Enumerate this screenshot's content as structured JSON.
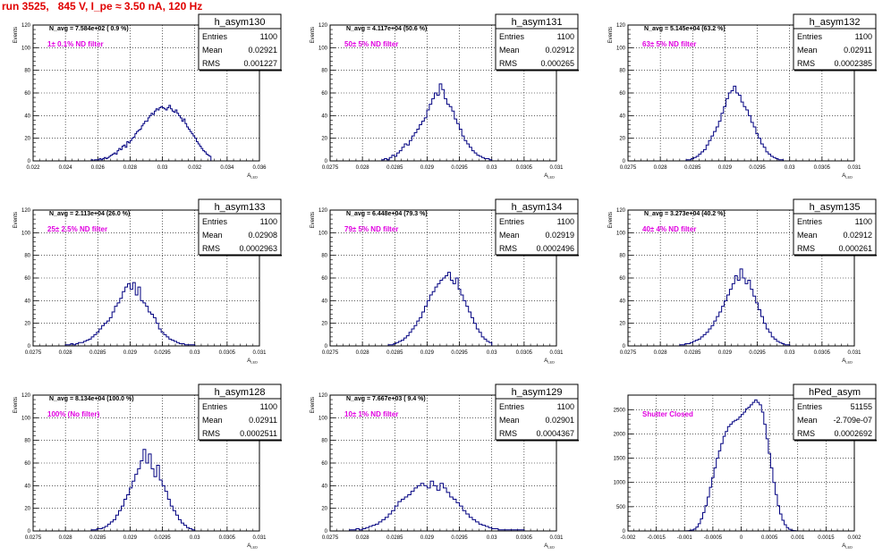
{
  "page_title": "run 3525,   845 V, I_pe ≈ 3.50 nA, 120 Hz",
  "colors": {
    "histogram_line": "#000080",
    "title_red": "#e00000",
    "annotation_magenta": "#e000e0",
    "grid": "#000000",
    "background": "#ffffff"
  },
  "stat_labels": {
    "entries": "Entries",
    "mean": "Mean",
    "rms": "RMS"
  },
  "chart_data": [
    {
      "type": "histogram",
      "name": "h_asym130",
      "stats": {
        "entries": "1100",
        "mean": "0.02921",
        "rms": "0.001227"
      },
      "navg": "N_avg = 7.584e+02 ( 0.9 %)",
      "note": "1± 0.1% ND filter",
      "ylabel": "Events",
      "xlabel": "A_LED",
      "xlim": [
        0.022,
        0.036
      ],
      "ylim": [
        0,
        120
      ],
      "xticks": [
        0.022,
        0.024,
        0.026,
        0.028,
        0.03,
        0.032,
        0.034,
        0.036
      ],
      "xtick_labels": [
        "0.022",
        "0.024",
        "0.026",
        "0.028",
        "0.03",
        "0.032",
        "0.034",
        "0.036"
      ],
      "yticks": [
        0,
        20,
        40,
        60,
        80,
        100,
        120
      ],
      "ytick_labels": [
        "0",
        "20",
        "40",
        "60",
        "80",
        "100",
        "120"
      ],
      "bins": {
        "lo": 0.0255,
        "hi": 0.033,
        "counts": [
          0,
          1,
          0,
          1,
          1,
          1,
          2,
          1,
          2,
          3,
          2,
          3,
          4,
          5,
          6,
          7,
          6,
          9,
          11,
          10,
          13,
          14,
          12,
          17,
          16,
          18,
          20,
          21,
          24,
          26,
          27,
          28,
          31,
          33,
          35,
          35,
          38,
          40,
          42,
          41,
          44,
          46,
          45,
          47,
          48,
          47,
          46,
          45,
          47,
          49,
          46,
          44,
          43,
          45,
          42,
          40,
          38,
          35,
          37,
          33,
          30,
          28,
          26,
          24,
          22,
          20,
          17,
          15,
          13,
          11,
          9,
          8,
          6,
          5,
          4
        ]
      }
    },
    {
      "type": "histogram",
      "name": "h_asym131",
      "stats": {
        "entries": "1100",
        "mean": "0.02912",
        "rms": "0.000265"
      },
      "navg": "N_avg = 4.117e+04 (50.6 %)",
      "note": "50± 5% ND filter",
      "ylabel": "Events",
      "xlabel": "A_LED",
      "xlim": [
        0.0275,
        0.031
      ],
      "ylim": [
        0,
        120
      ],
      "xticks": [
        0.0275,
        0.028,
        0.0285,
        0.029,
        0.0295,
        0.03,
        0.0305,
        0.031
      ],
      "xtick_labels": [
        "0.0275",
        "0.028",
        "0.0285",
        "0.029",
        "0.0295",
        "0.03",
        "0.0305",
        "0.031"
      ],
      "yticks": [
        0,
        20,
        40,
        60,
        80,
        100,
        120
      ],
      "ytick_labels": [
        "0",
        "20",
        "40",
        "60",
        "80",
        "100",
        "120"
      ],
      "bins": {
        "lo": 0.0283,
        "hi": 0.03,
        "counts": [
          1,
          2,
          1,
          3,
          5,
          4,
          7,
          9,
          12,
          15,
          14,
          18,
          22,
          25,
          28,
          32,
          35,
          38,
          45,
          50,
          55,
          60,
          58,
          68,
          63,
          55,
          50,
          48,
          44,
          37,
          33,
          28,
          22,
          18,
          15,
          12,
          9,
          7,
          5,
          4,
          3,
          2,
          2,
          1
        ]
      }
    },
    {
      "type": "histogram",
      "name": "h_asym132",
      "stats": {
        "entries": "1100",
        "mean": "0.02911",
        "rms": "0.0002385"
      },
      "navg": "N_avg = 5.145e+04 (63.2 %)",
      "note": "63± 5% ND filter",
      "ylabel": "Events",
      "xlabel": "A_LED",
      "xlim": [
        0.0275,
        0.031
      ],
      "ylim": [
        0,
        120
      ],
      "xticks": [
        0.0275,
        0.028,
        0.0285,
        0.029,
        0.0295,
        0.03,
        0.0305,
        0.031
      ],
      "xtick_labels": [
        "0.0275",
        "0.028",
        "0.0285",
        "0.029",
        "0.0295",
        "0.03",
        "0.0305",
        "0.031"
      ],
      "yticks": [
        0,
        20,
        40,
        60,
        80,
        100,
        120
      ],
      "ytick_labels": [
        "0",
        "20",
        "40",
        "60",
        "80",
        "100",
        "120"
      ],
      "bins": {
        "lo": 0.0284,
        "hi": 0.0299,
        "counts": [
          1,
          1,
          2,
          3,
          4,
          6,
          8,
          10,
          14,
          18,
          22,
          26,
          30,
          35,
          42,
          48,
          55,
          60,
          62,
          66,
          60,
          58,
          52,
          48,
          45,
          40,
          34,
          30,
          24,
          20,
          15,
          12,
          8,
          6,
          4,
          3,
          2,
          1,
          1
        ]
      }
    },
    {
      "type": "histogram",
      "name": "h_asym133",
      "stats": {
        "entries": "1100",
        "mean": "0.02908",
        "rms": "0.0002963"
      },
      "navg": "N_avg = 2.113e+04 (26.0 %)",
      "note": "25± 2.5% ND filter",
      "ylabel": "Events",
      "xlabel": "A_LED",
      "xlim": [
        0.0275,
        0.031
      ],
      "ylim": [
        0,
        120
      ],
      "xticks": [
        0.0275,
        0.028,
        0.0285,
        0.029,
        0.0295,
        0.03,
        0.0305,
        0.031
      ],
      "xtick_labels": [
        "0.0275",
        "0.028",
        "0.0285",
        "0.029",
        "0.0295",
        "0.03",
        "0.0305",
        "0.031"
      ],
      "yticks": [
        0,
        20,
        40,
        60,
        80,
        100,
        120
      ],
      "ytick_labels": [
        "0",
        "20",
        "40",
        "60",
        "80",
        "100",
        "120"
      ],
      "bins": {
        "lo": 0.028,
        "hi": 0.03,
        "counts": [
          1,
          1,
          2,
          1,
          2,
          3,
          3,
          4,
          5,
          6,
          8,
          10,
          12,
          15,
          18,
          20,
          22,
          25,
          30,
          35,
          38,
          42,
          48,
          52,
          55,
          50,
          56,
          45,
          52,
          40,
          38,
          35,
          30,
          28,
          25,
          20,
          15,
          12,
          10,
          8,
          6,
          5,
          4,
          3,
          2,
          2,
          1,
          1,
          1,
          1
        ]
      }
    },
    {
      "type": "histogram",
      "name": "h_asym134",
      "stats": {
        "entries": "1100",
        "mean": "0.02919",
        "rms": "0.0002496"
      },
      "navg": "N_avg = 6.448e+04 (79.3 %)",
      "note": "79± 5% ND filter",
      "ylabel": "Events",
      "xlabel": "A_LED",
      "xlim": [
        0.0275,
        0.031
      ],
      "ylim": [
        0,
        120
      ],
      "xticks": [
        0.0275,
        0.028,
        0.0285,
        0.029,
        0.0295,
        0.03,
        0.0305,
        0.031
      ],
      "xtick_labels": [
        "0.0275",
        "0.028",
        "0.0285",
        "0.029",
        "0.0295",
        "0.03",
        "0.0305",
        "0.031"
      ],
      "yticks": [
        0,
        20,
        40,
        60,
        80,
        100,
        120
      ],
      "ytick_labels": [
        "0",
        "20",
        "40",
        "60",
        "80",
        "100",
        "120"
      ],
      "bins": {
        "lo": 0.0284,
        "hi": 0.03,
        "counts": [
          1,
          1,
          2,
          3,
          4,
          5,
          7,
          9,
          12,
          15,
          18,
          22,
          25,
          30,
          35,
          40,
          45,
          48,
          52,
          55,
          58,
          60,
          62,
          65,
          58,
          55,
          60,
          50,
          45,
          40,
          35,
          30,
          25,
          20,
          15,
          12,
          8,
          6,
          4,
          3
        ]
      }
    },
    {
      "type": "histogram",
      "name": "h_asym135",
      "stats": {
        "entries": "1100",
        "mean": "0.02912",
        "rms": "0.000261"
      },
      "navg": "N_avg = 3.273e+04 (40.2 %)",
      "note": "40± 4% ND filter",
      "ylabel": "Events",
      "xlabel": "A_LED",
      "xlim": [
        0.0275,
        0.031
      ],
      "ylim": [
        0,
        120
      ],
      "xticks": [
        0.0275,
        0.028,
        0.0285,
        0.029,
        0.0295,
        0.03,
        0.0305,
        0.031
      ],
      "xtick_labels": [
        "0.0275",
        "0.028",
        "0.0285",
        "0.029",
        "0.0295",
        "0.03",
        "0.0305",
        "0.031"
      ],
      "yticks": [
        0,
        20,
        40,
        60,
        80,
        100,
        120
      ],
      "ytick_labels": [
        "0",
        "20",
        "40",
        "60",
        "80",
        "100",
        "120"
      ],
      "bins": {
        "lo": 0.0283,
        "hi": 0.03,
        "counts": [
          1,
          1,
          2,
          2,
          3,
          4,
          5,
          6,
          8,
          10,
          12,
          15,
          18,
          22,
          26,
          30,
          35,
          40,
          45,
          50,
          55,
          62,
          58,
          68,
          60,
          55,
          58,
          50,
          44,
          38,
          32,
          26,
          20,
          15,
          12,
          8,
          6,
          4,
          3,
          2,
          1,
          1
        ]
      }
    },
    {
      "type": "histogram",
      "name": "h_asym128",
      "stats": {
        "entries": "1100",
        "mean": "0.02911",
        "rms": "0.0002511"
      },
      "navg": "N_avg = 8.134e+04 (100.0 %)",
      "note": "100% (No filter)",
      "ylabel": "Events",
      "xlabel": "A_LED",
      "xlim": [
        0.0275,
        0.031
      ],
      "ylim": [
        0,
        120
      ],
      "xticks": [
        0.0275,
        0.028,
        0.0285,
        0.029,
        0.0295,
        0.03,
        0.0305,
        0.031
      ],
      "xtick_labels": [
        "0.0275",
        "0.028",
        "0.0285",
        "0.029",
        "0.0295",
        "0.03",
        "0.0305",
        "0.031"
      ],
      "yticks": [
        0,
        20,
        40,
        60,
        80,
        100,
        120
      ],
      "ytick_labels": [
        "0",
        "20",
        "40",
        "60",
        "80",
        "100",
        "120"
      ],
      "bins": {
        "lo": 0.0284,
        "hi": 0.03,
        "counts": [
          1,
          1,
          2,
          2,
          3,
          4,
          6,
          8,
          10,
          14,
          18,
          22,
          28,
          32,
          38,
          44,
          50,
          55,
          62,
          72,
          60,
          68,
          55,
          48,
          58,
          45,
          40,
          35,
          28,
          22,
          18,
          14,
          10,
          7,
          5,
          3,
          2,
          1
        ]
      }
    },
    {
      "type": "histogram",
      "name": "h_asym129",
      "stats": {
        "entries": "1100",
        "mean": "0.02901",
        "rms": "0.0004367"
      },
      "navg": "N_avg = 7.667e+03 ( 9.4 %)",
      "note": "10± 1% ND filter",
      "ylabel": "Events",
      "xlabel": "A_LED",
      "xlim": [
        0.0275,
        0.031
      ],
      "ylim": [
        0,
        120
      ],
      "xticks": [
        0.0275,
        0.028,
        0.0285,
        0.029,
        0.0295,
        0.03,
        0.0305,
        0.031
      ],
      "xtick_labels": [
        "0.0275",
        "0.028",
        "0.0285",
        "0.029",
        "0.0295",
        "0.03",
        "0.0305",
        "0.031"
      ],
      "yticks": [
        0,
        20,
        40,
        60,
        80,
        100,
        120
      ],
      "ytick_labels": [
        "0",
        "20",
        "40",
        "60",
        "80",
        "100",
        "120"
      ],
      "bins": {
        "lo": 0.0278,
        "hi": 0.0305,
        "counts": [
          1,
          1,
          2,
          1,
          2,
          3,
          4,
          5,
          6,
          8,
          10,
          12,
          15,
          18,
          22,
          26,
          28,
          30,
          32,
          35,
          38,
          40,
          42,
          40,
          38,
          44,
          40,
          36,
          42,
          38,
          34,
          30,
          28,
          25,
          22,
          18,
          15,
          12,
          10,
          8,
          6,
          5,
          4,
          3,
          2,
          2,
          1,
          1,
          1,
          1,
          1,
          1,
          1,
          1
        ]
      }
    },
    {
      "type": "histogram",
      "name": "hPed_asym",
      "stats": {
        "entries": "51155",
        "mean": "-2.709e-07",
        "rms": "0.0002692"
      },
      "navg": "",
      "note": "Shutter Closed",
      "ylabel": "",
      "xlabel": "A_LED",
      "xlim": [
        -0.002,
        0.002
      ],
      "ylim": [
        0,
        2800
      ],
      "xticks": [
        -0.002,
        -0.0015,
        -0.001,
        -0.0005,
        0,
        0.0005,
        0.001,
        0.0015,
        0.002
      ],
      "xtick_labels": [
        "-0.002",
        "-0.0015",
        "-0.001",
        "-0.0005",
        "0",
        "0.0005",
        "0.001",
        "0.0015",
        "0.002"
      ],
      "yticks": [
        0,
        500,
        1000,
        1500,
        2000,
        2500
      ],
      "ytick_labels": [
        "0",
        "500",
        "1000",
        "1500",
        "2000",
        "2500"
      ],
      "bins": {
        "lo": -0.001,
        "hi": 0.001,
        "counts": [
          2,
          5,
          10,
          20,
          40,
          80,
          150,
          250,
          380,
          520,
          700,
          900,
          1100,
          1300,
          1500,
          1650,
          1800,
          1950,
          2050,
          2150,
          2200,
          2250,
          2280,
          2300,
          2350,
          2400,
          2450,
          2520,
          2550,
          2600,
          2650,
          2700,
          2650,
          2600,
          2450,
          2200,
          1900,
          1600,
          1300,
          1000,
          750,
          520,
          350,
          220,
          130,
          70,
          35,
          15,
          6,
          2
        ]
      }
    }
  ]
}
